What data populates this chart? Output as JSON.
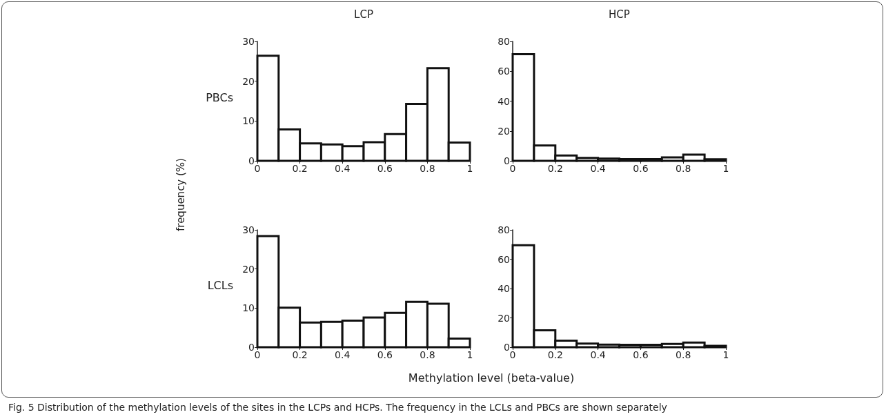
{
  "chart_data": [
    {
      "type": "histogram",
      "title": "LCP",
      "ylabel": "frequency (%)",
      "annotations": [
        "PBCs"
      ],
      "bins": [
        0,
        0.1,
        0.2,
        0.3,
        0.4,
        0.5,
        0.6,
        0.7,
        0.8,
        0.9,
        1
      ],
      "values": [
        26.4,
        7.9,
        4.4,
        4.1,
        3.7,
        4.7,
        6.7,
        14.3,
        23.3,
        4.6
      ],
      "xlim": [
        0,
        1
      ],
      "xticks": [
        0,
        0.2,
        0.4,
        0.6,
        0.8,
        1
      ],
      "ylim": [
        0,
        30
      ],
      "yticks": [
        0,
        10,
        20,
        30
      ],
      "grid": false
    },
    {
      "type": "histogram",
      "title": "HCP",
      "bins": [
        0,
        0.1,
        0.2,
        0.3,
        0.4,
        0.5,
        0.6,
        0.7,
        0.8,
        0.9,
        1
      ],
      "values": [
        71.4,
        10.3,
        3.6,
        2,
        1.5,
        1.2,
        1.2,
        2.3,
        4.2,
        1
      ],
      "xlim": [
        0,
        1
      ],
      "xticks": [
        0,
        0.2,
        0.4,
        0.6,
        0.8,
        1
      ],
      "ylim": [
        0,
        80
      ],
      "yticks": [
        0,
        20,
        40,
        60,
        80
      ],
      "grid": false
    },
    {
      "type": "histogram",
      "xlabel": "Methylation level (beta-value)",
      "annotations": [
        "LCLs",
        "Fig. 5 Distribution of the methylation levels of the sites in the LCPs and HCPs. The frequency in the LCLs and PBCs are shown separately"
      ],
      "bins": [
        0,
        0.1,
        0.2,
        0.3,
        0.4,
        0.5,
        0.6,
        0.7,
        0.8,
        0.9,
        1
      ],
      "values": [
        28.4,
        10.1,
        6.3,
        6.5,
        6.8,
        7.6,
        8.8,
        11.6,
        11.1,
        2.2
      ],
      "xlim": [
        0,
        1
      ],
      "xticks": [
        0,
        0.2,
        0.4,
        0.6,
        0.8,
        1
      ],
      "ylim": [
        0,
        30
      ],
      "yticks": [
        0,
        10,
        20,
        30
      ],
      "grid": false
    },
    {
      "type": "histogram",
      "bins": [
        0,
        0.1,
        0.2,
        0.3,
        0.4,
        0.5,
        0.6,
        0.7,
        0.8,
        0.9,
        1
      ],
      "values": [
        69.5,
        11.5,
        4.5,
        2.5,
        1.8,
        1.6,
        1.6,
        2.2,
        3.2,
        1
      ],
      "xlim": [
        0,
        1
      ],
      "xticks": [
        0,
        0.2,
        0.4,
        0.6,
        0.8,
        1
      ],
      "ylim": [
        0,
        80
      ],
      "yticks": [
        0,
        20,
        40,
        60,
        80
      ],
      "grid": false
    }
  ]
}
